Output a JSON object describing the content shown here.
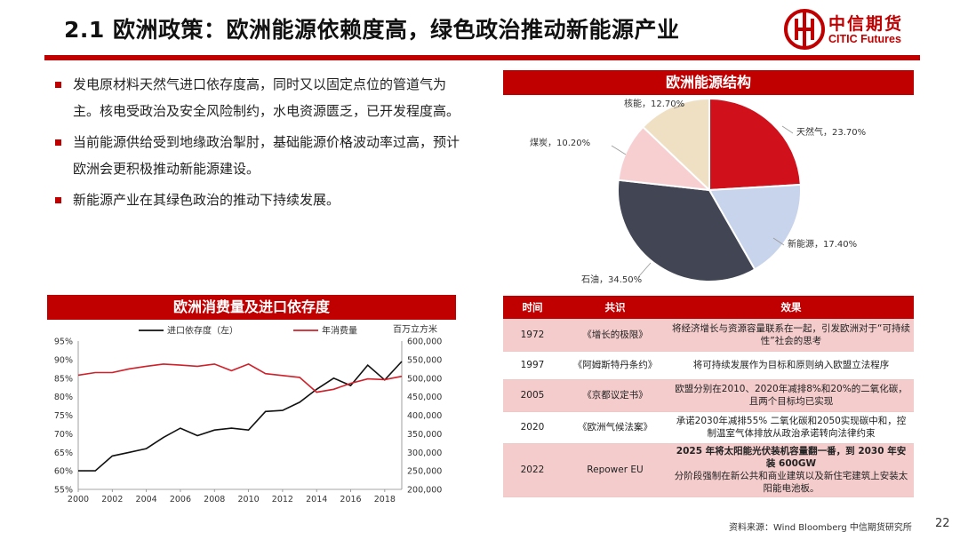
{
  "page": {
    "title": "2.1 欧洲政策：欧洲能源依赖度高，绿色政治推动新能源产业",
    "page_number": "22",
    "source": "资料来源：Wind Bloomberg 中信期货研究所"
  },
  "logo": {
    "cn": "中信期货",
    "en": "CITIC Futures"
  },
  "bullets": [
    "发电原材料天然气进口依存度高，同时又以固定点位的管道气为主。核电受政治及安全风险制约，水电资源匮乏，已开发程度高。",
    "当前能源供给受到地缘政治掣肘，基础能源价格波动率过高，预计欧洲会更积极推动新能源建设。",
    "新能源产业在其绿色政治的推动下持续发展。"
  ],
  "colors": {
    "brand_red": "#c00000",
    "row_shade": "#f4cccc"
  },
  "chart_data": [
    {
      "type": "pie",
      "title": "欧洲能源结构",
      "slices": [
        {
          "name": "天然气",
          "value": 23.7,
          "label": "天然气，23.70%",
          "color": "#d0101a"
        },
        {
          "name": "新能源",
          "value": 17.4,
          "label": "新能源，17.40%",
          "color": "#c8d4ec"
        },
        {
          "name": "石油",
          "value": 34.5,
          "label": "石油，34.50%",
          "color": "#424654"
        },
        {
          "name": "煤炭",
          "value": 10.2,
          "label": "煤炭，10.20%",
          "color": "#f7cfd1"
        },
        {
          "name": "核能",
          "value": 12.7,
          "label": "核能，12.70%",
          "color": "#efe0c4"
        }
      ]
    },
    {
      "type": "line",
      "title": "欧洲消费量及进口依存度",
      "x": [
        2000,
        2001,
        2002,
        2003,
        2004,
        2005,
        2006,
        2007,
        2008,
        2009,
        2010,
        2011,
        2012,
        2013,
        2014,
        2015,
        2016,
        2017,
        2018,
        2019
      ],
      "xticks": [
        "2000",
        "2002",
        "2004",
        "2006",
        "2008",
        "2010",
        "2012",
        "2014",
        "2016",
        "2018"
      ],
      "series": [
        {
          "name": "进口依存度（左）",
          "axis": "left",
          "color": "#111111",
          "values": [
            60,
            60,
            64,
            65,
            66,
            69,
            71.5,
            69.5,
            71,
            71.5,
            71,
            76,
            76.3,
            78.5,
            82,
            85,
            83,
            88.5,
            84.5,
            89.5
          ]
        },
        {
          "name": "年消费量",
          "axis": "right",
          "color": "#d0202a",
          "values": [
            508,
            515,
            515,
            525,
            532,
            538,
            535,
            532,
            538,
            520,
            538,
            512,
            507,
            502,
            462,
            470,
            486,
            498,
            496,
            505
          ]
        }
      ],
      "left_axis": {
        "min": 55,
        "max": 95,
        "ticks": [
          "55%",
          "60%",
          "65%",
          "70%",
          "75%",
          "80%",
          "85%",
          "90%",
          "95%"
        ]
      },
      "right_axis": {
        "min": 200000,
        "max": 600000,
        "unit": "百万立方米",
        "ticks": [
          "200,000",
          "250,000",
          "300,000",
          "350,000",
          "400,000",
          "450,000",
          "500,000",
          "550,000",
          "600,000"
        ]
      }
    }
  ],
  "policy_table": {
    "headers": [
      "时间",
      "共识",
      "效果"
    ],
    "rows": [
      {
        "year": "1972",
        "name": "《增长的极限》",
        "effect": "将经济增长与资源容量联系在一起，引发欧洲对于“可持续性”社会的思考",
        "effect_bold": ""
      },
      {
        "year": "1997",
        "name": "《阿姆斯特丹条约》",
        "effect": "将可持续发展作为目标和原则纳入欧盟立法程序",
        "effect_bold": ""
      },
      {
        "year": "2005",
        "name": "《京都议定书》",
        "effect": "欧盟分别在2010、2020年减排8%和20%的二氧化碳，且两个目标均已实现",
        "effect_bold": ""
      },
      {
        "year": "2020",
        "name": "《欧洲气候法案》",
        "effect": "承诺2030年减排55% 二氧化碳和2050实现碳中和，控制温室气体排放从政治承诺转向法律约束",
        "effect_bold": ""
      },
      {
        "year": "2022",
        "name": "Repower EU",
        "effect_bold": "2025 年将太阳能光伏装机容量翻一番，到 2030 年安装 600GW",
        "effect": "分阶段强制在新公共和商业建筑以及新住宅建筑上安装太阳能电池板。"
      }
    ]
  }
}
